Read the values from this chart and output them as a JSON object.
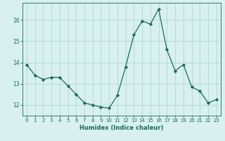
{
  "x": [
    0,
    1,
    2,
    3,
    4,
    5,
    6,
    7,
    8,
    9,
    10,
    11,
    12,
    13,
    14,
    15,
    16,
    17,
    18,
    19,
    20,
    21,
    22,
    23
  ],
  "y": [
    13.9,
    13.4,
    13.2,
    13.3,
    13.3,
    12.9,
    12.5,
    12.1,
    12.0,
    11.9,
    11.85,
    12.45,
    13.8,
    15.3,
    15.95,
    15.8,
    16.5,
    14.6,
    13.6,
    13.9,
    12.85,
    12.65,
    12.1,
    12.25
  ],
  "xlabel": "Humidex (Indice chaleur)",
  "xlim": [
    -0.5,
    23.5
  ],
  "ylim": [
    11.5,
    16.8
  ],
  "yticks": [
    12,
    13,
    14,
    15,
    16
  ],
  "xticks": [
    0,
    1,
    2,
    3,
    4,
    5,
    6,
    7,
    8,
    9,
    10,
    11,
    12,
    13,
    14,
    15,
    16,
    17,
    18,
    19,
    20,
    21,
    22,
    23
  ],
  "line_color": "#1a6b5a",
  "marker_color": "#1a6b5a",
  "bg_color": "#d8f0ee",
  "grid_color": "#b0d8d0",
  "axis_color": "#1a6b5a",
  "label_color": "#1a6b5a",
  "tick_color": "#1a6b5a"
}
